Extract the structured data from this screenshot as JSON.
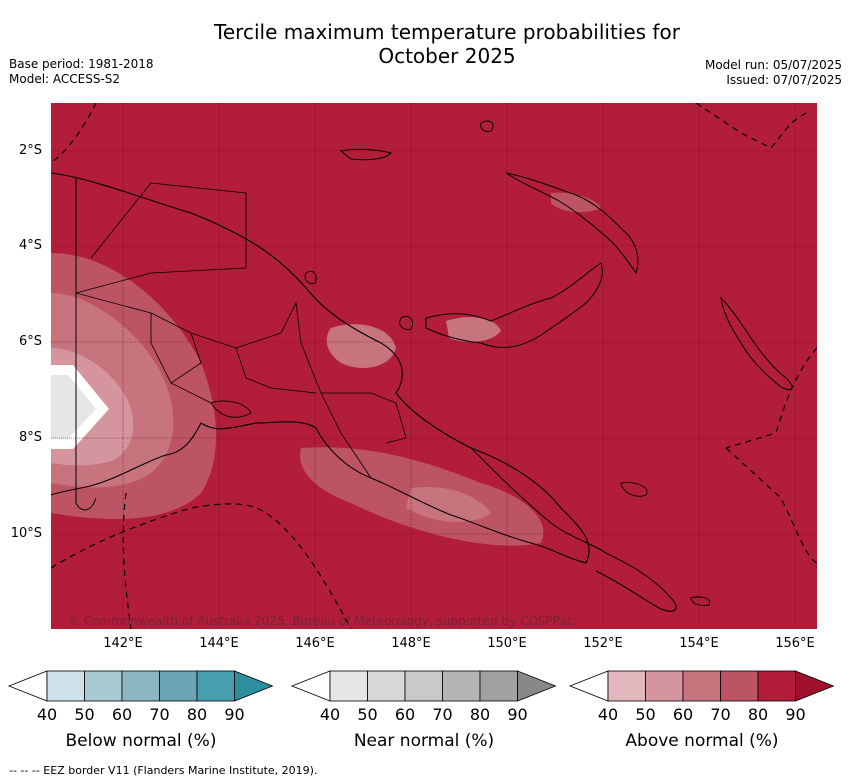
{
  "title_line1": "Tercile maximum temperature probabilities for",
  "title_line2": "October 2025",
  "meta_left": {
    "base_period": "Base period: 1981-2018",
    "model": "Model: ACCESS-S2"
  },
  "meta_right": {
    "model_run": "Model run: 05/07/2025",
    "issued": "Issued: 07/07/2025"
  },
  "lat_labels": [
    "2°S",
    "4°S",
    "6°S",
    "8°S",
    "10°S"
  ],
  "lon_labels": [
    "142°E",
    "144°E",
    "146°E",
    "148°E",
    "150°E",
    "152°E",
    "154°E",
    "156°E"
  ],
  "copyright": "© Commonwealth of Australia 2025, Bureau of Meteorology, supported by COSPPac",
  "colorbars": [
    {
      "title": "Below normal (%)",
      "ticks": [
        "40",
        "50",
        "60",
        "70",
        "80",
        "90"
      ],
      "colors": [
        "#ffffff",
        "#cde3e9",
        "#a8cad2",
        "#8bb7c1",
        "#6aa6b4",
        "#47a0b0",
        "#2b8fa0"
      ]
    },
    {
      "title": "Near normal (%)",
      "ticks": [
        "40",
        "50",
        "60",
        "70",
        "80",
        "90"
      ],
      "colors": [
        "#ffffff",
        "#e6e6e6",
        "#d8d8d8",
        "#c9c9c9",
        "#b5b5b5",
        "#a1a1a1",
        "#888888"
      ]
    },
    {
      "title": "Above normal (%)",
      "ticks": [
        "40",
        "50",
        "60",
        "70",
        "80",
        "90"
      ],
      "colors": [
        "#ffffff",
        "#e2b8bf",
        "#d5959e",
        "#c7747f",
        "#bd5463",
        "#b21e3a",
        "#a0102c"
      ]
    }
  ],
  "footer": "-- -- -- EEZ border V11 (Flanders Marine Institute, 2019).",
  "colors": {
    "above_90": "#b21e3a",
    "above_80": "#bd5463",
    "above_70": "#c7747f",
    "above_60": "#d5959e",
    "near_50": "#e6e6e6",
    "neutral": "#ffffff"
  }
}
